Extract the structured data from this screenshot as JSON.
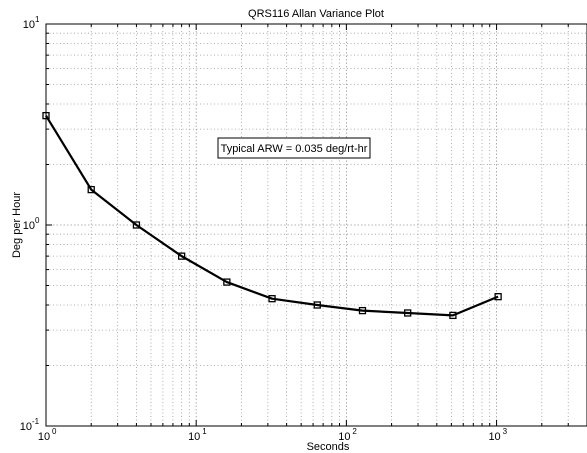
{
  "chart_data": {
    "type": "line",
    "title": "QRS116 Allan Variance Plot",
    "xlabel": "Seconds",
    "ylabel": "Deg per Hour",
    "xscale": "log",
    "yscale": "log",
    "xlim": [
      1,
      4000
    ],
    "ylim": [
      0.1,
      10
    ],
    "grid": true,
    "x_ticks": [
      {
        "base": "10",
        "exp": "0",
        "value": 1
      },
      {
        "base": "10",
        "exp": "1",
        "value": 10
      },
      {
        "base": "10",
        "exp": "2",
        "value": 100
      },
      {
        "base": "10",
        "exp": "3",
        "value": 1000
      }
    ],
    "y_ticks": [
      {
        "base": "10",
        "exp": "-1",
        "value": 0.1
      },
      {
        "base": "10",
        "exp": "0",
        "value": 1
      },
      {
        "base": "10",
        "exp": "1",
        "value": 10
      }
    ],
    "series": [
      {
        "color": "#000000",
        "marker": "square",
        "x": [
          1,
          2,
          4,
          8,
          16,
          32,
          64,
          128,
          256,
          512,
          1024
        ],
        "y": [
          3.5,
          1.5,
          1.0,
          0.7,
          0.52,
          0.43,
          0.4,
          0.375,
          0.365,
          0.355,
          0.44
        ]
      }
    ],
    "annotations": [
      {
        "text": "Typical ARW = 0.035 deg/rt-hr",
        "x": 20,
        "y": 3.0
      }
    ]
  }
}
